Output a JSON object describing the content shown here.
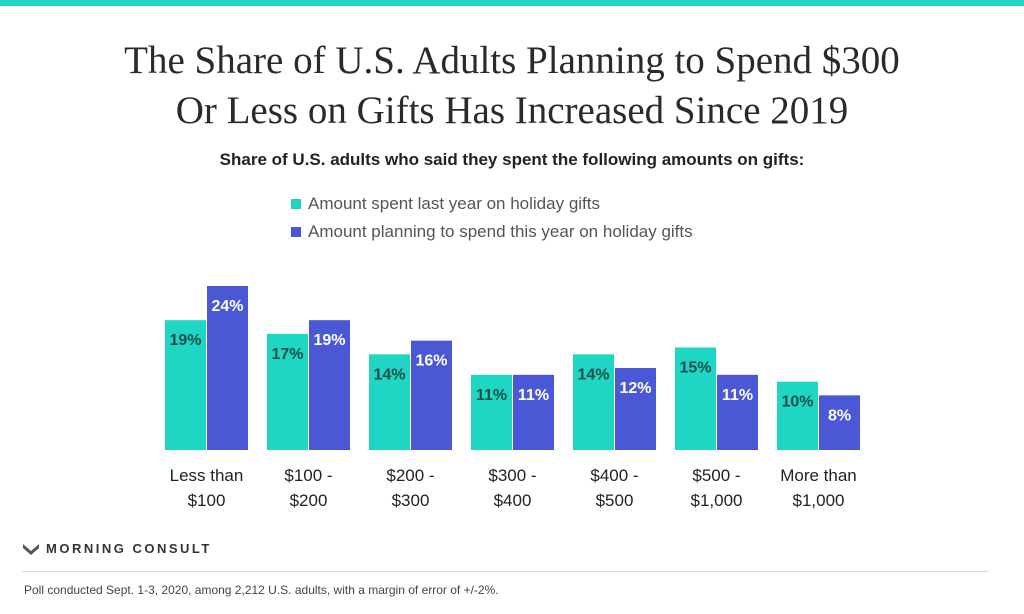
{
  "header": {
    "title_line1": "The Share of U.S. Adults Planning to Spend $300",
    "title_line2": "Or Less on Gifts Has Increased Since 2019",
    "subtitle": "Share of U.S. adults who said they spent the following amounts on gifts:"
  },
  "chart_data": {
    "type": "bar",
    "title": "The Share of U.S. Adults Planning to Spend $300 Or Less on Gifts Has Increased Since 2019",
    "subtitle": "Share of U.S. adults who said they spent the following amounts on gifts:",
    "categories": [
      [
        "Less than",
        "$100"
      ],
      [
        "$100 -",
        "$200"
      ],
      [
        "$200 -",
        "$300"
      ],
      [
        "$300 -",
        "$400"
      ],
      [
        "$400 -",
        "$500"
      ],
      [
        "$500 -",
        "$1,000"
      ],
      [
        "More than",
        "$1,000"
      ]
    ],
    "series": [
      {
        "name": "Amount spent last year on holiday gifts",
        "color": "#1fd5c4",
        "values": [
          19,
          17,
          14,
          11,
          14,
          15,
          10
        ]
      },
      {
        "name": "Amount planning to spend this year on holiday gifts",
        "color": "#4a58d6",
        "values": [
          24,
          19,
          16,
          11,
          12,
          11,
          8
        ]
      }
    ],
    "value_suffix": "%",
    "legend_position": "top",
    "grid": false,
    "ylim": [
      0,
      24
    ]
  },
  "colors": {
    "accent": "#1fd5c4",
    "logo": "#555555"
  },
  "footer": {
    "logo_icon": "morning-consult-logo-icon",
    "logo_text": "MORNING CONSULT",
    "note": "Poll conducted Sept. 1-3, 2020, among 2,212 U.S. adults, with a margin of error of +/-2%."
  }
}
